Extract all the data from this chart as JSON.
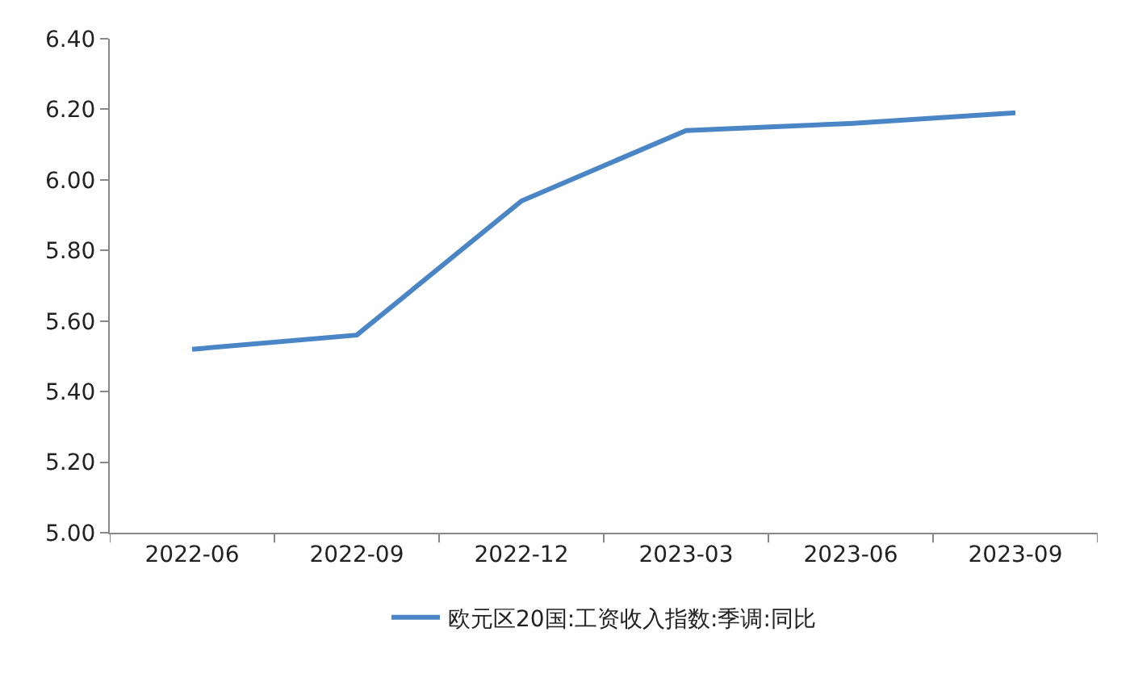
{
  "chart_data": {
    "type": "line",
    "categories": [
      "2022-06",
      "2022-09",
      "2022-12",
      "2023-03",
      "2023-06",
      "2023-09"
    ],
    "series": [
      {
        "name": "欧元区20国:工资收入指数:季调:同比",
        "color": "#4a86c5",
        "values": [
          5.52,
          5.56,
          5.94,
          6.14,
          6.16,
          6.19
        ]
      }
    ],
    "ylim": [
      5.0,
      6.4
    ],
    "yticks": [
      {
        "value": 5.0,
        "label": "5.00"
      },
      {
        "value": 5.2,
        "label": "5.20"
      },
      {
        "value": 5.4,
        "label": "5.40"
      },
      {
        "value": 5.6,
        "label": "5.60"
      },
      {
        "value": 5.8,
        "label": "5.80"
      },
      {
        "value": 6.0,
        "label": "6.00"
      },
      {
        "value": 6.2,
        "label": "6.20"
      },
      {
        "value": 6.4,
        "label": "6.40"
      }
    ],
    "legend": "bottom",
    "marker": "none",
    "line_style": "solid"
  }
}
